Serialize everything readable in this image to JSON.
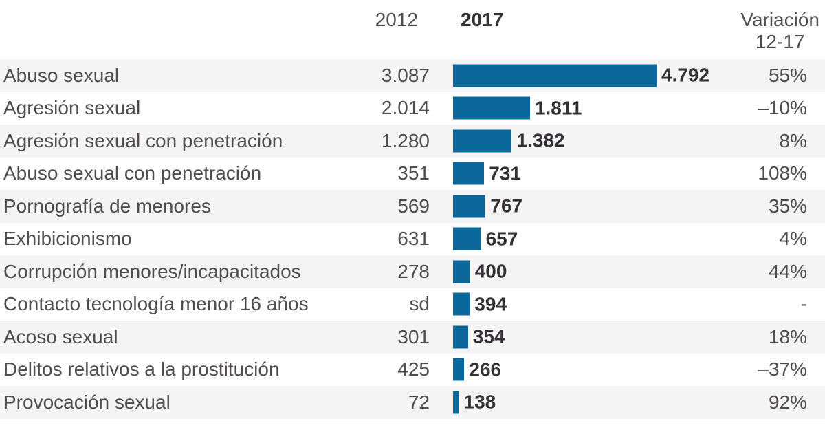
{
  "chart_data": {
    "type": "bar",
    "orientation": "horizontal",
    "title": "",
    "columns": {
      "year_2012_label": "2012",
      "year_2017_label": "2017",
      "variation_label_line1": "Variación",
      "variation_label_line2": "12-17"
    },
    "bars_represent": "2017",
    "max_value": 4792,
    "rows": [
      {
        "label": "Abuso sexual",
        "v2012_display": "3.087",
        "value_2012": 3087,
        "v2017_display": "4.792",
        "value_2017": 4792,
        "variation": "55%"
      },
      {
        "label": "Agresión sexual",
        "v2012_display": "2.014",
        "value_2012": 2014,
        "v2017_display": "1.811",
        "value_2017": 1811,
        "variation": "–10%"
      },
      {
        "label": "Agresión sexual con penetración",
        "v2012_display": "1.280",
        "value_2012": 1280,
        "v2017_display": "1.382",
        "value_2017": 1382,
        "variation": "8%"
      },
      {
        "label": "Abuso sexual con penetración",
        "v2012_display": "351",
        "value_2012": 351,
        "v2017_display": "731",
        "value_2017": 731,
        "variation": "108%"
      },
      {
        "label": "Pornografía de menores",
        "v2012_display": "569",
        "value_2012": 569,
        "v2017_display": "767",
        "value_2017": 767,
        "variation": "35%"
      },
      {
        "label": "Exhibicionismo",
        "v2012_display": "631",
        "value_2012": 631,
        "v2017_display": "657",
        "value_2017": 657,
        "variation": "4%"
      },
      {
        "label": "Corrupción menores/incapacitados",
        "v2012_display": "278",
        "value_2012": 278,
        "v2017_display": "400",
        "value_2017": 400,
        "variation": "44%"
      },
      {
        "label": "Contacto tecnología menor 16 años",
        "v2012_display": "sd",
        "value_2012": null,
        "v2017_display": "394",
        "value_2017": 394,
        "variation": "-"
      },
      {
        "label": "Acoso sexual",
        "v2012_display": "301",
        "value_2012": 301,
        "v2017_display": "354",
        "value_2017": 354,
        "variation": "18%"
      },
      {
        "label": "Delitos relativos a la prostitución",
        "v2012_display": "425",
        "value_2012": 425,
        "v2017_display": "266",
        "value_2017": 266,
        "variation": "–37%"
      },
      {
        "label": "Provocación sexual",
        "v2012_display": "72",
        "value_2012": 72,
        "v2017_display": "138",
        "value_2017": 138,
        "variation": "92%"
      }
    ],
    "colors": {
      "bar": "#0c689b",
      "row_alt_bg": "#f4f4f4",
      "text": "#514d4f",
      "text_strong": "#353036"
    },
    "layout_hints": {
      "legend": "none",
      "grid": "off",
      "row_striping": "odd rows shaded"
    }
  }
}
